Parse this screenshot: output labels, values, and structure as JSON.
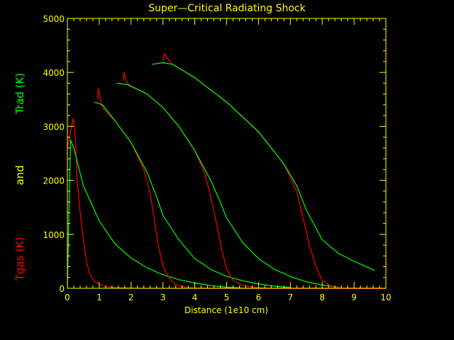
{
  "chart_data": {
    "type": "line",
    "title": "Super—Critical Radiating Shock",
    "xlabel": "Distance (1e10 cm)",
    "ylabel_parts": [
      "Tgas (K)",
      "and",
      "Trad (K)"
    ],
    "xlim": [
      0,
      10
    ],
    "ylim": [
      0,
      5000
    ],
    "xticks": [
      0,
      1,
      2,
      3,
      4,
      5,
      6,
      7,
      8,
      9,
      10
    ],
    "yticks": [
      0,
      1000,
      2000,
      3000,
      4000,
      5000
    ],
    "colors": {
      "background": "#000000",
      "axes": "#ffff00",
      "tgas": "#ff0000",
      "trad": "#00ff00"
    },
    "series": [
      {
        "name": "Tgas (K)",
        "color": "#ff0000",
        "group": 1,
        "x": [
          0.0,
          0.1,
          0.18,
          0.22,
          0.26,
          0.3,
          0.4,
          0.5,
          0.6,
          0.7,
          0.8,
          1.0,
          1.2,
          1.5,
          2.0,
          2.5,
          3.0,
          10.0
        ],
        "y": [
          2600,
          2900,
          3150,
          3000,
          2650,
          2050,
          1400,
          900,
          500,
          270,
          160,
          70,
          30,
          15,
          5,
          0,
          0,
          0
        ]
      },
      {
        "name": "Trad (K)",
        "color": "#00ff00",
        "group": 1,
        "x": [
          0.0,
          0.1,
          0.2,
          0.5,
          1.0,
          1.5,
          2.0,
          2.5,
          3.0,
          3.5,
          4.0,
          4.5,
          5.0,
          5.5
        ],
        "y": [
          40,
          2750,
          2600,
          1900,
          1250,
          820,
          560,
          380,
          250,
          160,
          100,
          50,
          20,
          5
        ]
      },
      {
        "name": "Tgas (K)",
        "color": "#ff0000",
        "group": 2,
        "x": [
          0.95,
          0.97,
          1.0,
          1.05,
          1.1,
          1.5,
          2.0,
          2.4,
          2.6,
          2.75,
          2.85,
          3.0,
          3.2,
          3.4,
          3.7,
          4.0,
          4.5,
          10.0
        ],
        "y": [
          3500,
          3700,
          3600,
          3450,
          3350,
          3100,
          2700,
          2200,
          1750,
          1200,
          800,
          420,
          180,
          70,
          20,
          5,
          0,
          0
        ]
      },
      {
        "name": "Trad (K)",
        "color": "#00ff00",
        "group": 2,
        "x": [
          0.85,
          1.1,
          1.5,
          2.0,
          2.5,
          2.8,
          3.0,
          3.5,
          4.0,
          4.5,
          5.0,
          5.5,
          6.0,
          6.5,
          7.0
        ],
        "y": [
          3450,
          3400,
          3100,
          2700,
          2150,
          1700,
          1350,
          900,
          550,
          350,
          220,
          140,
          80,
          40,
          15
        ]
      },
      {
        "name": "Tgas (K)",
        "color": "#ff0000",
        "group": 3,
        "x": [
          1.75,
          1.78,
          1.82,
          1.88,
          2.0,
          2.5,
          3.0,
          3.5,
          4.0,
          4.3,
          4.5,
          4.7,
          4.85,
          5.0,
          5.2,
          5.5,
          6.0,
          6.5,
          10.0
        ],
        "y": [
          3850,
          4000,
          3900,
          3800,
          3750,
          3600,
          3350,
          3000,
          2550,
          2150,
          1700,
          1150,
          700,
          360,
          150,
          50,
          10,
          0,
          0
        ]
      },
      {
        "name": "Trad (K)",
        "color": "#00ff00",
        "group": 3,
        "x": [
          1.55,
          1.9,
          2.5,
          3.0,
          3.5,
          4.0,
          4.5,
          4.8,
          5.0,
          5.5,
          6.0,
          6.5,
          7.0,
          7.5,
          8.0,
          8.5
        ],
        "y": [
          3800,
          3770,
          3600,
          3350,
          3000,
          2550,
          2000,
          1600,
          1300,
          850,
          550,
          350,
          220,
          120,
          60,
          20
        ]
      },
      {
        "name": "Tgas (K)",
        "color": "#ff0000",
        "group": 4,
        "x": [
          3.0,
          3.05,
          3.1,
          3.15,
          3.3,
          4.0,
          5.0,
          6.0,
          6.8,
          7.2,
          7.4,
          7.6,
          7.8,
          8.0,
          8.3,
          8.7,
          10.0
        ],
        "y": [
          4200,
          4350,
          4300,
          4250,
          4150,
          3900,
          3450,
          2900,
          2300,
          1800,
          1300,
          800,
          400,
          150,
          30,
          0,
          0
        ]
      },
      {
        "name": "Trad (K)",
        "color": "#00ff00",
        "group": 4,
        "x": [
          2.65,
          3.0,
          3.3,
          4.0,
          5.0,
          6.0,
          6.8,
          7.2,
          7.5,
          8.0,
          8.5,
          9.0,
          9.5,
          9.65
        ],
        "y": [
          4150,
          4180,
          4150,
          3900,
          3450,
          2900,
          2300,
          1900,
          1450,
          900,
          650,
          500,
          370,
          330
        ]
      }
    ]
  }
}
